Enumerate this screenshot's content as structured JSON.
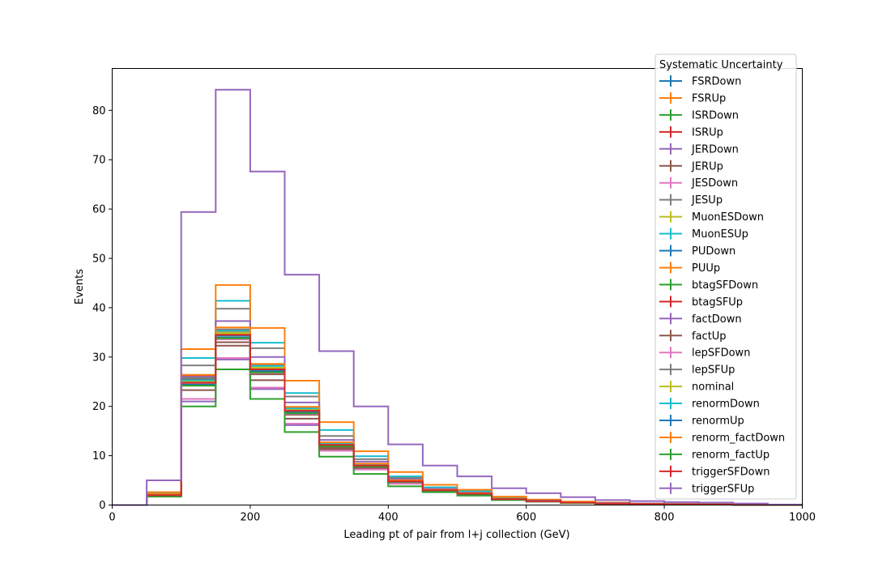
{
  "chart_data": {
    "type": "line",
    "subtype": "step-histogram",
    "xlabel": "Leading pt of pair from l+j collection (GeV)",
    "ylabel": "Events",
    "xlim": [
      0,
      1000
    ],
    "ylim": [
      0,
      88.5
    ],
    "xticks": [
      0,
      200,
      400,
      600,
      800,
      1000
    ],
    "yticks": [
      0,
      10,
      20,
      30,
      40,
      50,
      60,
      70,
      80
    ],
    "grid": false,
    "legend_title": "Systematic Uncertainty",
    "legend_placement": "top-right",
    "bin_edges": [
      0,
      50,
      100,
      150,
      200,
      250,
      300,
      350,
      400,
      450,
      500,
      550,
      600,
      650,
      700,
      750,
      800,
      850,
      900,
      950,
      1000
    ],
    "series": [
      {
        "name": "FSRDown",
        "color": "#1f77b4",
        "values": [
          0,
          2.0,
          25.0,
          34.5,
          27.5,
          19.0,
          12.0,
          8.0,
          4.8,
          3.0,
          2.3,
          1.2,
          0.8,
          0.5,
          0.3,
          0.2,
          0.15,
          0.1,
          0.05,
          0.05
        ]
      },
      {
        "name": "FSRUp",
        "color": "#ff7f0e",
        "values": [
          0,
          2.2,
          25.5,
          35.0,
          27.8,
          19.3,
          12.3,
          8.2,
          5.0,
          3.1,
          2.4,
          1.3,
          0.9,
          0.5,
          0.3,
          0.2,
          0.15,
          0.1,
          0.05,
          0.05
        ]
      },
      {
        "name": "ISRDown",
        "color": "#2ca02c",
        "values": [
          0,
          2.0,
          24.5,
          34.0,
          27.0,
          18.8,
          11.8,
          7.8,
          4.7,
          2.9,
          2.2,
          1.2,
          0.8,
          0.5,
          0.3,
          0.2,
          0.15,
          0.1,
          0.05,
          0.05
        ]
      },
      {
        "name": "ISRUp",
        "color": "#d62728",
        "values": [
          0,
          2.1,
          25.2,
          34.8,
          27.6,
          19.1,
          12.1,
          8.1,
          4.9,
          3.0,
          2.3,
          1.2,
          0.8,
          0.5,
          0.3,
          0.2,
          0.15,
          0.1,
          0.05,
          0.05
        ]
      },
      {
        "name": "JERDown",
        "color": "#9467bd",
        "values": [
          0,
          1.9,
          21.0,
          29.5,
          23.5,
          16.2,
          11.0,
          7.3,
          4.4,
          2.8,
          2.1,
          1.1,
          0.7,
          0.4,
          0.3,
          0.2,
          0.1,
          0.1,
          0.05,
          0.05
        ]
      },
      {
        "name": "JERUp",
        "color": "#8c564b",
        "values": [
          0,
          2.0,
          23.3,
          32.3,
          25.3,
          17.5,
          11.3,
          7.5,
          4.6,
          2.9,
          2.2,
          1.1,
          0.8,
          0.5,
          0.3,
          0.2,
          0.15,
          0.1,
          0.05,
          0.05
        ]
      },
      {
        "name": "JESDown",
        "color": "#e377c2",
        "values": [
          0,
          1.9,
          21.5,
          29.8,
          23.8,
          16.5,
          11.0,
          7.2,
          4.3,
          2.8,
          2.1,
          1.1,
          0.7,
          0.4,
          0.3,
          0.2,
          0.1,
          0.1,
          0.05,
          0.05
        ]
      },
      {
        "name": "JESUp",
        "color": "#7f7f7f",
        "values": [
          0,
          2.3,
          28.3,
          39.8,
          31.8,
          22.0,
          14.0,
          9.3,
          5.5,
          3.5,
          2.6,
          1.4,
          0.9,
          0.6,
          0.4,
          0.3,
          0.2,
          0.1,
          0.05,
          0.05
        ]
      },
      {
        "name": "MuonESDown",
        "color": "#bcbd22",
        "values": [
          0,
          2.1,
          25.0,
          34.8,
          27.8,
          19.3,
          12.3,
          8.1,
          4.9,
          3.0,
          2.3,
          1.2,
          0.8,
          0.5,
          0.3,
          0.2,
          0.15,
          0.1,
          0.05,
          0.05
        ]
      },
      {
        "name": "MuonESUp",
        "color": "#17becf",
        "values": [
          0,
          2.4,
          29.8,
          41.4,
          32.9,
          22.7,
          15.2,
          9.9,
          5.8,
          3.6,
          2.8,
          1.5,
          1.0,
          0.6,
          0.4,
          0.3,
          0.2,
          0.1,
          0.05,
          0.05
        ]
      },
      {
        "name": "PUDown",
        "color": "#1f77b4",
        "values": [
          0,
          2.0,
          24.8,
          34.4,
          27.3,
          18.9,
          12.0,
          7.9,
          4.8,
          2.9,
          2.2,
          1.2,
          0.8,
          0.5,
          0.3,
          0.2,
          0.15,
          0.1,
          0.05,
          0.05
        ]
      },
      {
        "name": "PUUp",
        "color": "#ff7f0e",
        "values": [
          0,
          2.6,
          31.6,
          44.6,
          35.9,
          25.2,
          16.8,
          10.9,
          6.7,
          4.1,
          3.1,
          1.7,
          1.1,
          0.7,
          0.5,
          0.3,
          0.2,
          0.15,
          0.1,
          0.05
        ]
      },
      {
        "name": "btagSFDown",
        "color": "#2ca02c",
        "values": [
          0,
          1.7,
          20.0,
          27.5,
          21.5,
          14.8,
          9.8,
          6.3,
          3.8,
          2.6,
          1.9,
          1.0,
          0.7,
          0.4,
          0.3,
          0.2,
          0.1,
          0.1,
          0.05,
          0.05
        ]
      },
      {
        "name": "btagSFUp",
        "color": "#d62728",
        "values": [
          0,
          2.2,
          26.2,
          35.3,
          28.3,
          19.6,
          12.6,
          8.3,
          5.0,
          3.1,
          2.4,
          1.3,
          0.8,
          0.5,
          0.3,
          0.2,
          0.15,
          0.1,
          0.05,
          0.05
        ]
      },
      {
        "name": "factDown",
        "color": "#9467bd",
        "values": [
          0,
          2.1,
          26.0,
          37.3,
          30.0,
          20.8,
          13.2,
          8.8,
          5.2,
          3.3,
          2.5,
          1.3,
          0.9,
          0.5,
          0.4,
          0.3,
          0.2,
          0.1,
          0.05,
          0.05
        ]
      },
      {
        "name": "factUp",
        "color": "#8c564b",
        "values": [
          0,
          2.0,
          25.5,
          33.0,
          26.5,
          18.3,
          11.6,
          7.6,
          4.7,
          2.9,
          2.2,
          1.2,
          0.8,
          0.5,
          0.3,
          0.2,
          0.15,
          0.1,
          0.05,
          0.05
        ]
      },
      {
        "name": "lepSFDown",
        "color": "#e377c2",
        "values": [
          0,
          2.0,
          24.6,
          33.6,
          26.8,
          18.5,
          11.9,
          7.8,
          4.7,
          2.9,
          2.2,
          1.2,
          0.8,
          0.5,
          0.3,
          0.2,
          0.15,
          0.1,
          0.05,
          0.05
        ]
      },
      {
        "name": "lepSFUp",
        "color": "#7f7f7f",
        "values": [
          0,
          2.2,
          25.8,
          35.6,
          28.5,
          19.8,
          12.6,
          8.3,
          5.0,
          3.1,
          2.4,
          1.3,
          0.8,
          0.5,
          0.3,
          0.2,
          0.15,
          0.1,
          0.05,
          0.05
        ]
      },
      {
        "name": "nominal",
        "color": "#bcbd22",
        "values": [
          0,
          2.1,
          25.1,
          34.9,
          27.9,
          19.4,
          12.4,
          8.1,
          4.9,
          3.0,
          2.3,
          1.2,
          0.8,
          0.5,
          0.3,
          0.2,
          0.15,
          0.1,
          0.05,
          0.05
        ]
      },
      {
        "name": "renormDown",
        "color": "#17becf",
        "values": [
          0,
          2.1,
          25.3,
          35.3,
          28.2,
          19.6,
          12.5,
          8.2,
          4.9,
          3.1,
          2.3,
          1.2,
          0.8,
          0.5,
          0.3,
          0.2,
          0.15,
          0.1,
          0.05,
          0.05
        ]
      },
      {
        "name": "renormUp",
        "color": "#1f77b4",
        "values": [
          0,
          2.0,
          24.4,
          34.0,
          27.1,
          18.8,
          12.0,
          7.9,
          4.7,
          2.9,
          2.2,
          1.2,
          0.8,
          0.5,
          0.3,
          0.2,
          0.15,
          0.1,
          0.05,
          0.05
        ]
      },
      {
        "name": "renorm_factDown",
        "color": "#ff7f0e",
        "values": [
          0,
          2.2,
          26.4,
          36.0,
          28.6,
          19.9,
          12.7,
          8.4,
          5.0,
          3.1,
          2.4,
          1.3,
          0.8,
          0.5,
          0.3,
          0.2,
          0.15,
          0.1,
          0.05,
          0.05
        ]
      },
      {
        "name": "renorm_factUp",
        "color": "#2ca02c",
        "values": [
          0,
          2.0,
          24.2,
          33.8,
          26.9,
          18.6,
          11.9,
          7.8,
          4.7,
          2.9,
          2.2,
          1.2,
          0.8,
          0.5,
          0.3,
          0.2,
          0.15,
          0.1,
          0.05,
          0.05
        ]
      },
      {
        "name": "triggerSFDown",
        "color": "#d62728",
        "values": [
          0,
          2.0,
          24.8,
          34.5,
          27.5,
          19.1,
          12.2,
          8.0,
          4.8,
          3.0,
          2.3,
          1.2,
          0.8,
          0.5,
          0.3,
          0.2,
          0.15,
          0.1,
          0.05,
          0.05
        ]
      },
      {
        "name": "triggerSFUp",
        "color": "#9467bd",
        "values": [
          0,
          5.0,
          59.4,
          84.2,
          67.6,
          46.7,
          31.2,
          20.0,
          12.3,
          8.0,
          5.8,
          3.4,
          2.4,
          1.6,
          1.0,
          0.8,
          0.6,
          0.5,
          0.3,
          0.1
        ]
      }
    ]
  }
}
